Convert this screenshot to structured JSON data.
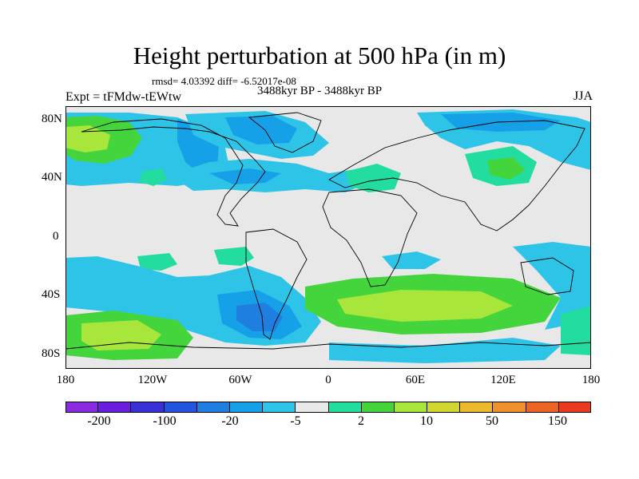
{
  "header": {
    "title": "Height perturbation at 500 hPa (in m)",
    "stats": "rmsd= 4.03392 diff= -6.52017e-08",
    "experiment": "Expt = tFMdw-tEWtw",
    "period": "3488kyr BP - 3488kyr BP",
    "season": "JJA"
  },
  "axes": {
    "lat_labels": [
      "80N",
      "40N",
      "0",
      "40S",
      "80S"
    ],
    "lon_labels": [
      "180",
      "120W",
      "60W",
      "0",
      "60E",
      "120E",
      "180"
    ]
  },
  "colorbar": {
    "colors": [
      "#8a2be2",
      "#6a1fe0",
      "#3a30d8",
      "#2255e0",
      "#1e7fe0",
      "#16a0e8",
      "#2ec4e8",
      "#e8e8e8",
      "#22dca0",
      "#44d43c",
      "#a8e63c",
      "#d4d630",
      "#ecba2c",
      "#f0922c",
      "#ec6424",
      "#ec3a20"
    ],
    "labels": [
      "-200",
      "-100",
      "-20",
      "-5",
      "2",
      "10",
      "50",
      "150"
    ]
  },
  "map_colors": {
    "ocean_bg": "#e8e8e8",
    "neg_light": "#2ec4e8",
    "neg_mid": "#16a0e8",
    "neg_strong": "#1e7fe0",
    "pos_light": "#22dca0",
    "pos_mid": "#44d43c",
    "pos_strong": "#a8e63c",
    "land_line": "#000000"
  }
}
